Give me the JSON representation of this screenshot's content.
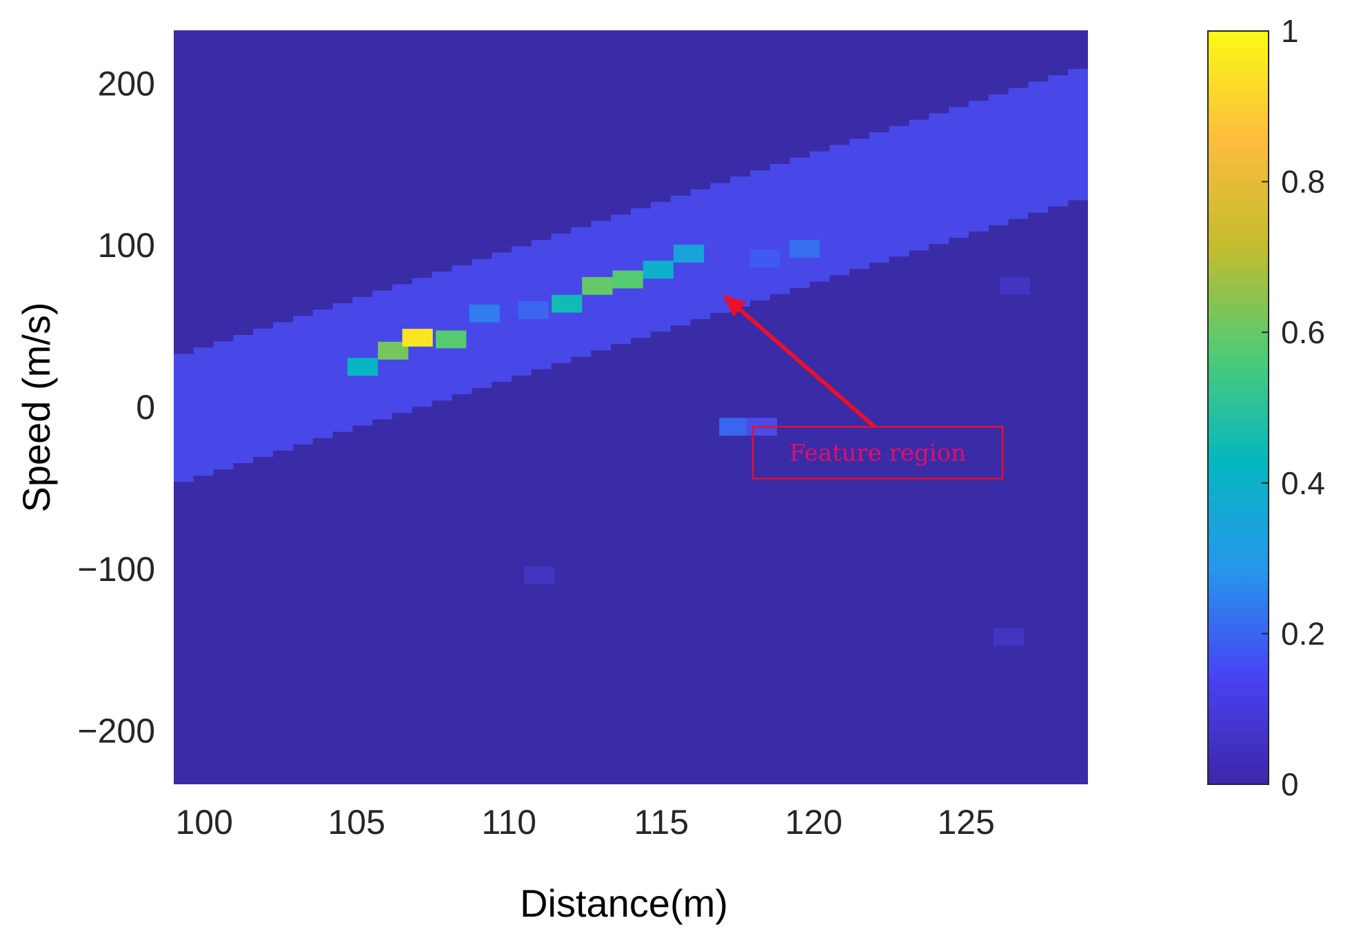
{
  "chart_data": {
    "type": "heatmap",
    "title": "",
    "xlabel": "Distance(m)",
    "ylabel": "Speed (m/s)",
    "xlim": [
      99,
      129
    ],
    "ylim": [
      -233,
      233
    ],
    "xticks": [
      100,
      105,
      110,
      115,
      120,
      125
    ],
    "yticks": [
      200,
      100,
      0,
      -100,
      -200
    ],
    "colorbar": {
      "ticks": [
        1,
        0.8,
        0.6,
        0.4,
        0.2,
        0
      ],
      "range": [
        0,
        1
      ],
      "colormap": "parula",
      "stops": [
        "#3e26a8",
        "#4743f3",
        "#2797eb",
        "#06b7c0",
        "#4fcb74",
        "#c4bc2f",
        "#fdbd3c",
        "#f9fb15"
      ]
    },
    "background": {
      "value": 0.0,
      "color": "#3a2ba6"
    },
    "band": {
      "value": 0.13,
      "color": "#4848e8",
      "description_free": true,
      "upper_edge": [
        [
          99,
          33
        ],
        [
          129,
          213
        ]
      ],
      "lower_edge": [
        [
          99,
          -50
        ],
        [
          129,
          128
        ]
      ]
    },
    "cells": [
      {
        "x": 105.2,
        "y": 25,
        "value": 0.42
      },
      {
        "x": 106.2,
        "y": 35,
        "value": 0.62
      },
      {
        "x": 107.0,
        "y": 43,
        "value": 0.95
      },
      {
        "x": 108.1,
        "y": 42,
        "value": 0.58
      },
      {
        "x": 109.2,
        "y": 58,
        "value": 0.24
      },
      {
        "x": 110.8,
        "y": 60,
        "value": 0.2
      },
      {
        "x": 111.9,
        "y": 64,
        "value": 0.45
      },
      {
        "x": 112.9,
        "y": 75,
        "value": 0.6
      },
      {
        "x": 113.9,
        "y": 79,
        "value": 0.58
      },
      {
        "x": 114.9,
        "y": 85,
        "value": 0.4
      },
      {
        "x": 115.9,
        "y": 95,
        "value": 0.34
      },
      {
        "x": 118.4,
        "y": 92,
        "value": 0.18
      },
      {
        "x": 119.7,
        "y": 98,
        "value": 0.22
      },
      {
        "x": 117.4,
        "y": -12,
        "value": 0.2
      },
      {
        "x": 118.3,
        "y": -12,
        "value": 0.12
      },
      {
        "x": 126.4,
        "y": -142,
        "value": 0.06
      },
      {
        "x": 126.6,
        "y": 75,
        "value": 0.05
      },
      {
        "x": 111.0,
        "y": -104,
        "value": 0.04
      }
    ],
    "annotation": {
      "text": "Feature region",
      "color": "#e8102a",
      "arrow_from": [
        122.0,
        -12
      ],
      "arrow_to": [
        117.0,
        70
      ],
      "box": [
        [
          118.0,
          -12
        ],
        [
          126.2,
          -44
        ]
      ]
    }
  }
}
